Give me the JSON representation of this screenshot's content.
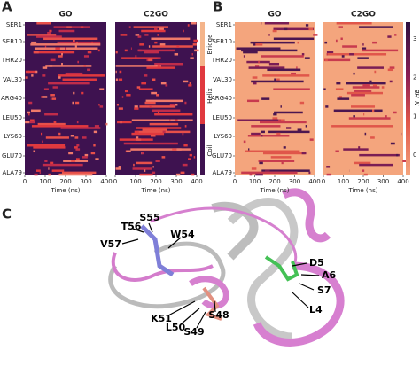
{
  "panel_a": {
    "label": "A",
    "titles": [
      "GO",
      "C2GO"
    ],
    "residues": [
      "SER1",
      "SER10",
      "THR20",
      "VAL30",
      "ARG40",
      "LEU50",
      "LYS60",
      "GLU70",
      "ALA79"
    ],
    "xticks": [
      0,
      100,
      200,
      300,
      400
    ],
    "xlabel": "Time (ns)",
    "colorbar": [
      "Bridge",
      "Helix",
      "Coil"
    ]
  },
  "panel_b": {
    "label": "B",
    "titles": [
      "GO",
      "C2GO"
    ],
    "residues": [
      "SER1",
      "SER10",
      "THR20",
      "VAL30",
      "ARG40",
      "LEU50",
      "LYS60",
      "GLU70",
      "ALA79"
    ],
    "xticks": [
      0,
      100,
      200,
      300,
      400
    ],
    "xlabel": "Time (ns)",
    "colorbar_ticks": [
      0,
      1,
      2,
      3
    ],
    "colorbar_label": "N_HB"
  },
  "panel_c": {
    "label": "C",
    "residue_labels": [
      "T56",
      "S55",
      "V57",
      "W54",
      "D5",
      "A6",
      "S7",
      "L4",
      "K51",
      "L50",
      "S49",
      "S48"
    ]
  }
}
